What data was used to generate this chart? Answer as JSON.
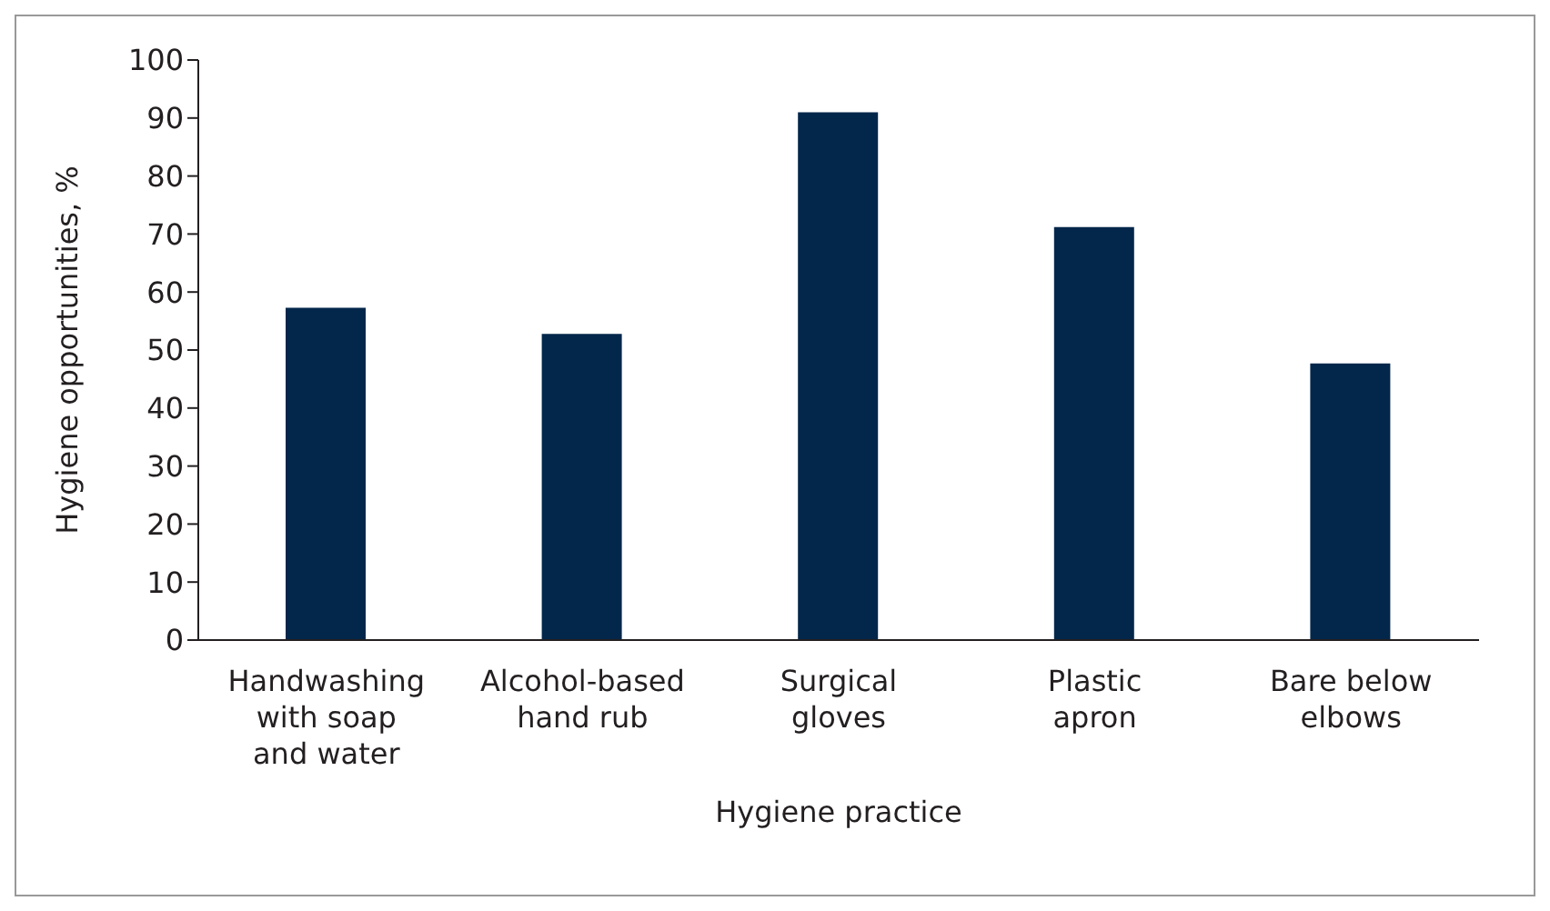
{
  "chart_data": {
    "type": "bar",
    "xlabel": "Hygiene practice",
    "ylabel": "Hygiene opportunities, %",
    "categories": [
      "Handwashing with soap and water",
      "Alcohol-based hand rub",
      "Surgical gloves",
      "Plastic apron",
      "Bare below elbows"
    ],
    "values": [
      57.3,
      52.8,
      91,
      71.2,
      47.7
    ],
    "color": "#03274b",
    "ylim": [
      0,
      100
    ],
    "yticks": [
      0,
      10,
      20,
      30,
      40,
      50,
      60,
      70,
      80,
      90,
      100
    ],
    "grid": false,
    "legend": false
  }
}
